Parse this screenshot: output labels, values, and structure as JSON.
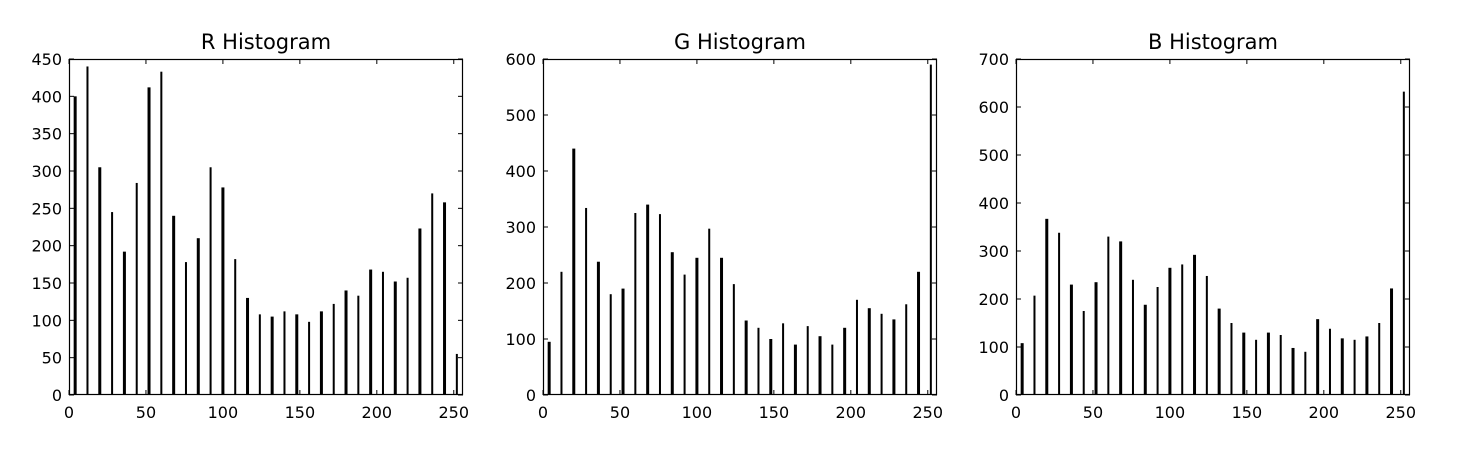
{
  "chart_data": [
    {
      "type": "bar",
      "title": "R Histogram",
      "xlabel": "",
      "ylabel": "",
      "xlim": [
        0,
        256
      ],
      "ylim": [
        0,
        450
      ],
      "xticks": [
        0,
        50,
        100,
        150,
        200,
        250
      ],
      "yticks": [
        0,
        50,
        100,
        150,
        200,
        250,
        300,
        350,
        400,
        450
      ],
      "grid": false,
      "bar_color": "#000000",
      "x": [
        4,
        12,
        20,
        28,
        36,
        44,
        52,
        60,
        68,
        76,
        84,
        92,
        100,
        108,
        116,
        124,
        132,
        140,
        148,
        156,
        164,
        172,
        180,
        188,
        196,
        204,
        212,
        220,
        228,
        236,
        244,
        252
      ],
      "values": [
        400,
        440,
        305,
        245,
        192,
        284,
        412,
        433,
        240,
        178,
        210,
        305,
        278,
        182,
        130,
        108,
        105,
        112,
        108,
        98,
        112,
        122,
        140,
        133,
        168,
        165,
        152,
        157,
        223,
        270,
        258,
        55
      ]
    },
    {
      "type": "bar",
      "title": "G Histogram",
      "xlabel": "",
      "ylabel": "",
      "xlim": [
        0,
        256
      ],
      "ylim": [
        0,
        600
      ],
      "xticks": [
        0,
        50,
        100,
        150,
        200,
        250
      ],
      "yticks": [
        0,
        100,
        200,
        300,
        400,
        500,
        600
      ],
      "grid": false,
      "bar_color": "#000000",
      "x": [
        4,
        12,
        20,
        28,
        36,
        44,
        52,
        60,
        68,
        76,
        84,
        92,
        100,
        108,
        116,
        124,
        132,
        140,
        148,
        156,
        164,
        172,
        180,
        188,
        196,
        204,
        212,
        220,
        228,
        236,
        244,
        252
      ],
      "values": [
        95,
        220,
        440,
        334,
        238,
        180,
        190,
        325,
        340,
        323,
        255,
        215,
        245,
        297,
        245,
        198,
        133,
        120,
        100,
        128,
        90,
        123,
        105,
        90,
        120,
        170,
        155,
        145,
        135,
        162,
        220,
        590
      ]
    },
    {
      "type": "bar",
      "title": "B Histogram",
      "xlabel": "",
      "ylabel": "",
      "xlim": [
        0,
        256
      ],
      "ylim": [
        0,
        700
      ],
      "xticks": [
        0,
        50,
        100,
        150,
        200,
        250
      ],
      "yticks": [
        0,
        100,
        200,
        300,
        400,
        500,
        600,
        700
      ],
      "grid": false,
      "bar_color": "#000000",
      "x": [
        4,
        12,
        20,
        28,
        36,
        44,
        52,
        60,
        68,
        76,
        84,
        92,
        100,
        108,
        116,
        124,
        132,
        140,
        148,
        156,
        164,
        172,
        180,
        188,
        196,
        204,
        212,
        220,
        228,
        236,
        244,
        252
      ],
      "values": [
        108,
        207,
        367,
        338,
        230,
        175,
        235,
        330,
        320,
        240,
        188,
        225,
        265,
        272,
        292,
        248,
        180,
        150,
        130,
        115,
        130,
        125,
        98,
        90,
        158,
        138,
        118,
        115,
        122,
        150,
        222,
        632
      ]
    }
  ]
}
